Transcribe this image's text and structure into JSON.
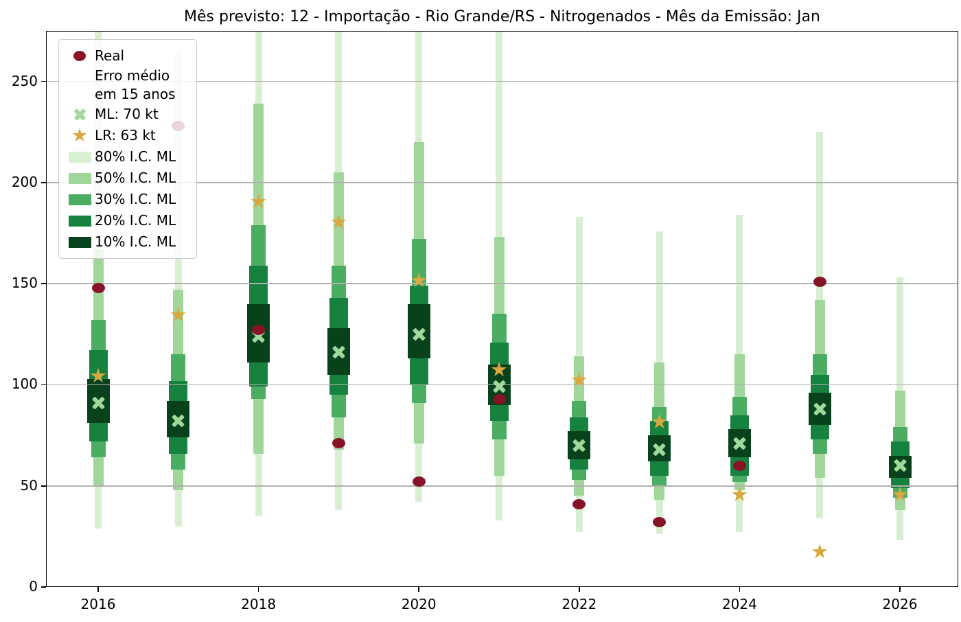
{
  "chart_data": {
    "type": "interval_forecast_bar",
    "title": "Mês previsto: 12 - Importação - Rio Grande/RS - Nitrogenados - Mês da Emissão: Jan",
    "x": [
      2016,
      2017,
      2018,
      2019,
      2020,
      2021,
      2022,
      2023,
      2024,
      2025,
      2026
    ],
    "xticks": [
      "2016",
      "2018",
      "2020",
      "2022",
      "2024",
      "2026"
    ],
    "xtick_years": [
      2016,
      2018,
      2020,
      2022,
      2024,
      2026
    ],
    "yticks": [
      0,
      50,
      100,
      150,
      200,
      250
    ],
    "ylim": [
      0,
      275
    ],
    "grid": "horizontal",
    "legend_position": "upper-left",
    "series": {
      "real": {
        "label": "Real",
        "marker": "circle",
        "values": [
          148,
          228,
          127,
          71,
          52,
          93,
          41,
          32,
          60,
          151,
          null
        ]
      },
      "ml": {
        "label": "ML: 70 kt",
        "marker": "x",
        "values": [
          91,
          82,
          124,
          116,
          125,
          99,
          70,
          68,
          71,
          88,
          60
        ]
      },
      "lr": {
        "label": "LR: 63 kt",
        "marker": "star",
        "values": [
          104,
          134,
          190,
          180,
          151,
          107,
          102,
          81,
          45,
          17,
          45
        ]
      },
      "ci80": {
        "label": "80% I.C. ML",
        "lo": [
          29,
          30,
          35,
          38,
          42,
          33,
          27,
          26,
          27,
          34,
          23
        ],
        "hi": [
          275,
          265,
          275,
          275,
          275,
          275,
          183,
          176,
          184,
          225,
          153
        ]
      },
      "ci50": {
        "label": "50% I.C. ML",
        "lo": [
          50,
          48,
          66,
          68,
          71,
          55,
          45,
          43,
          48,
          54,
          38
        ],
        "hi": [
          167,
          147,
          239,
          205,
          220,
          173,
          114,
          111,
          115,
          142,
          97
        ]
      },
      "ci30": {
        "label": "30% I.C. ML",
        "lo": [
          64,
          58,
          93,
          84,
          91,
          73,
          53,
          50,
          52,
          66,
          44
        ],
        "hi": [
          132,
          115,
          179,
          159,
          172,
          135,
          92,
          89,
          94,
          115,
          79
        ]
      },
      "ci20": {
        "label": "20% I.C. ML",
        "lo": [
          72,
          66,
          99,
          95,
          100,
          82,
          58,
          55,
          55,
          73,
          49
        ],
        "hi": [
          117,
          102,
          159,
          143,
          149,
          121,
          84,
          82,
          85,
          105,
          72
        ]
      },
      "ci10": {
        "label": "10% I.C. ML",
        "lo": [
          81,
          74,
          111,
          105,
          113,
          90,
          63,
          62,
          64,
          80,
          54
        ],
        "hi": [
          103,
          92,
          140,
          128,
          140,
          110,
          77,
          75,
          78,
          96,
          65
        ]
      }
    }
  },
  "legend": {
    "entries": [
      {
        "marker": "dot",
        "label": "Real"
      },
      {
        "marker": "none",
        "label": "Erro médio\nem 15 anos"
      },
      {
        "marker": "x",
        "label": "ML: 70 kt"
      },
      {
        "marker": "star",
        "label": "LR: 63 kt"
      },
      {
        "marker": "patch",
        "level": "ci80",
        "label": "80% I.C. ML"
      },
      {
        "marker": "patch",
        "level": "ci50",
        "label": "50% I.C. ML"
      },
      {
        "marker": "patch",
        "level": "ci30",
        "label": "30% I.C. ML"
      },
      {
        "marker": "patch",
        "level": "ci20",
        "label": "20% I.C. ML"
      },
      {
        "marker": "patch",
        "level": "ci10",
        "label": "10% I.C. ML"
      }
    ]
  },
  "icons": {
    "star": "★"
  },
  "colors": {
    "real": "#871426",
    "lr": "#d9a940",
    "ml": "#a1d99b",
    "ci80": "#d8efd2",
    "ci50": "#a0d69a",
    "ci30": "#4bad62",
    "ci20": "#17813f",
    "ci10": "#07421d",
    "grid": "#b0b0b0",
    "axis": "#000000",
    "legend_border": "#cccccc"
  }
}
